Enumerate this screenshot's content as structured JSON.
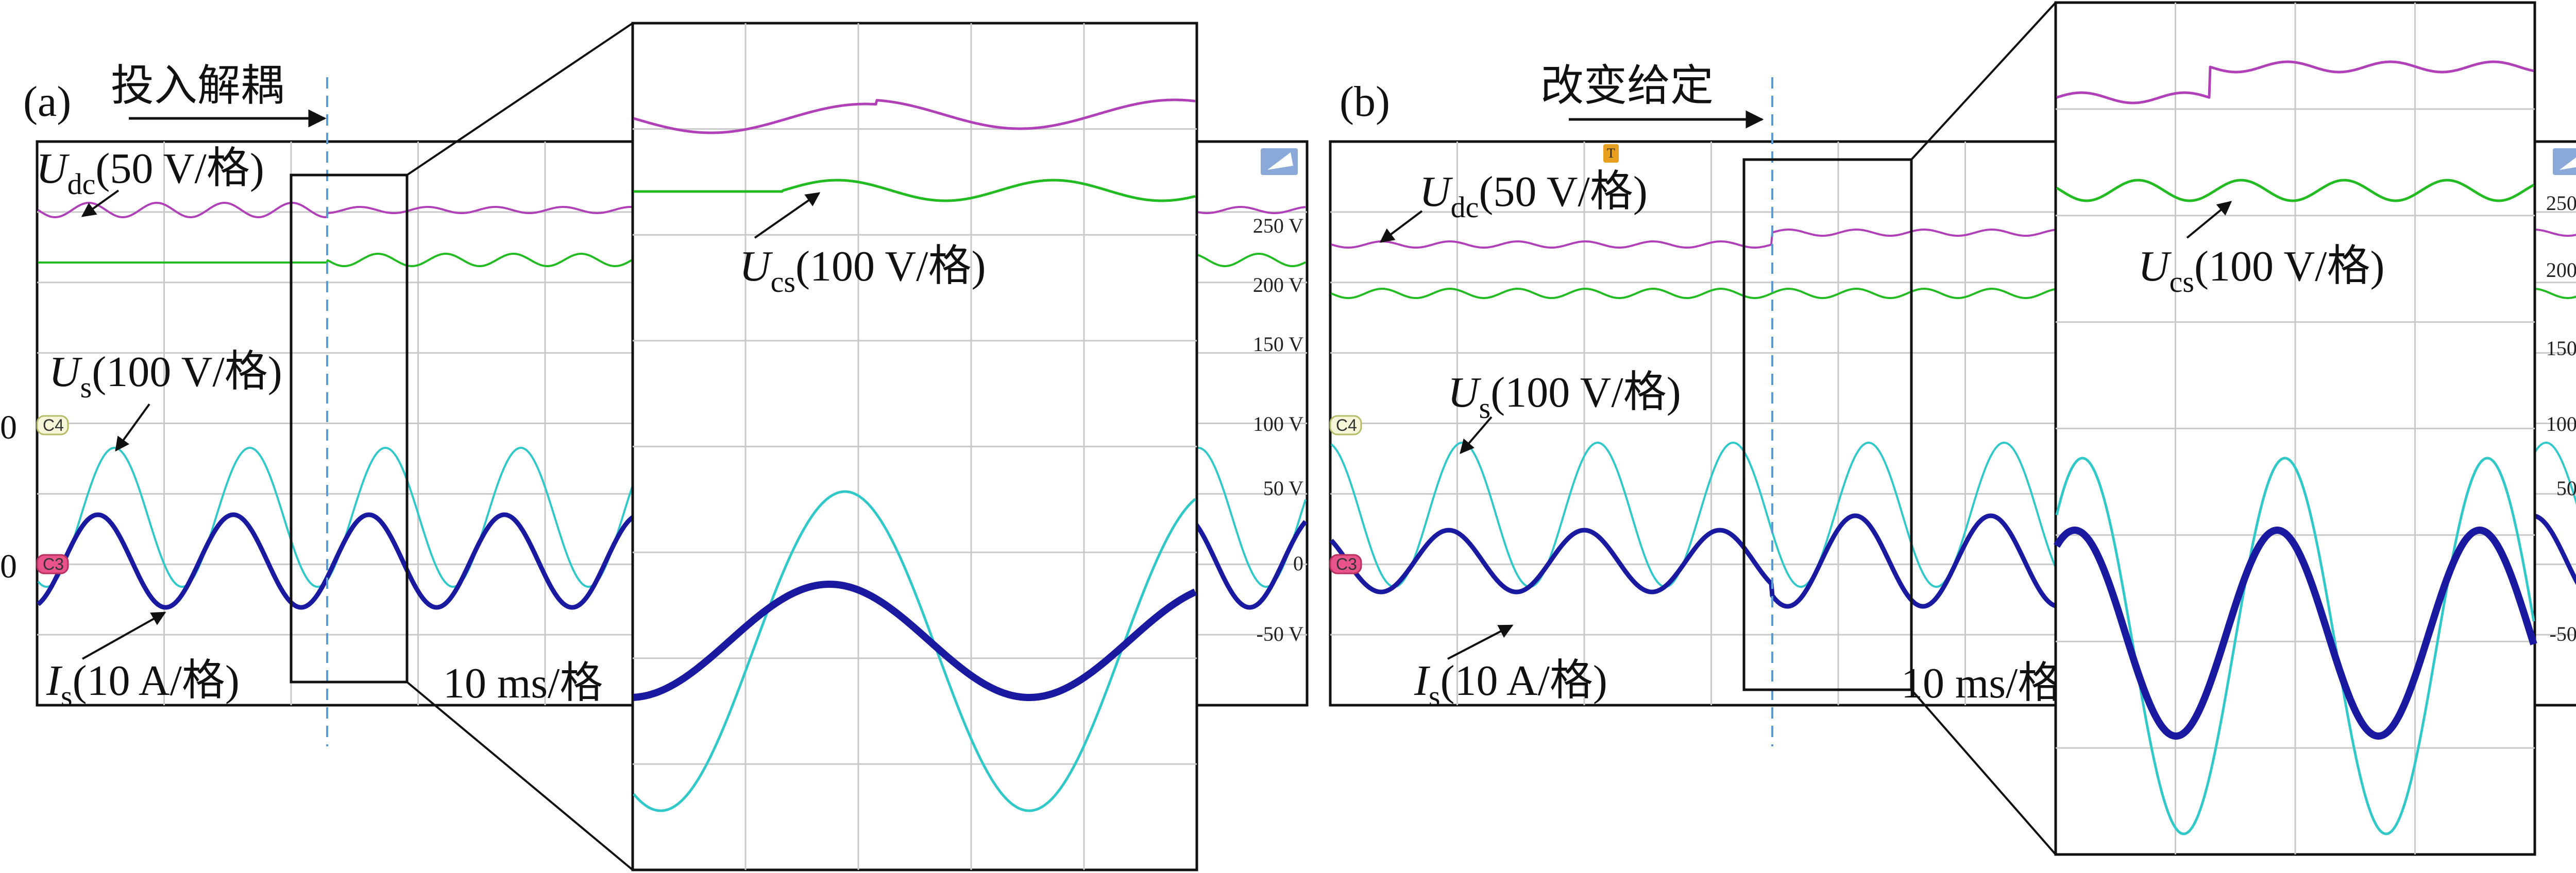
{
  "panels": [
    {
      "id": "a",
      "tag": "(a)",
      "event_label": "投入解耦",
      "time_scale": "10 ms/格",
      "zero_left_top": "0",
      "zero_left_bottom": "0",
      "channel_badges": [
        "C4",
        "C3"
      ],
      "right_axis_ticks": [
        "250 V",
        "200 V",
        "150 V",
        "100 V",
        "50 V",
        "0",
        "-50 V"
      ],
      "traces": [
        {
          "name": "U",
          "sub": "dc",
          "unit": "(50 V/格)",
          "color": "#b040b8"
        },
        {
          "name": "U",
          "sub": "cs",
          "unit": "(100 V/格)",
          "color": "#22bb22"
        },
        {
          "name": "U",
          "sub": "s",
          "unit": "(100 V/格)",
          "color": "#30c8c8"
        },
        {
          "name": "I",
          "sub": "s",
          "unit": "(10 A/格)",
          "color": "#1a1aa0"
        }
      ]
    },
    {
      "id": "b",
      "tag": "(b)",
      "event_label": "改变给定",
      "time_scale": "10 ms/格",
      "channel_badges": [
        "C4",
        "C3"
      ],
      "right_axis_ticks": [
        "250 V",
        "200 V",
        "150 V",
        "100 V",
        "50 V",
        "0",
        "-50 V"
      ],
      "traces": [
        {
          "name": "U",
          "sub": "dc",
          "unit": "(50 V/格)",
          "color": "#b040b8"
        },
        {
          "name": "U",
          "sub": "cs",
          "unit": "(100 V/格)",
          "color": "#22bb22"
        },
        {
          "name": "U",
          "sub": "s",
          "unit": "(100 V/格)",
          "color": "#30c8c8"
        },
        {
          "name": "I",
          "sub": "s",
          "unit": "(10 A/格)",
          "color": "#1a1aa0"
        }
      ]
    }
  ],
  "chart_data": [
    {
      "type": "line",
      "title": "(a) 投入解耦",
      "x_unit": "10 ms/格",
      "y_ticks": [
        "250 V",
        "200 V",
        "150 V",
        "100 V",
        "50 V",
        "0",
        "-50 V"
      ],
      "series": [
        {
          "name": "Udc (50 V/格)",
          "description_values": {
            "ripple_before_div": 0.35,
            "ripple_after_div": 0.12
          }
        },
        {
          "name": "Ucs (100 V/格)",
          "description_values": {
            "ripple_before_div": 0.0,
            "ripple_after_div": 0.2
          }
        },
        {
          "name": "Us (100 V/格)",
          "amplitude_div": 2.6,
          "period_div": 1.0
        },
        {
          "name": "Is (10 A/格)",
          "amplitude_div": 1.4,
          "period_div": 1.0
        }
      ]
    },
    {
      "type": "line",
      "title": "(b) 改变给定",
      "x_unit": "10 ms/格",
      "y_ticks": [
        "250 V",
        "200 V",
        "150 V",
        "100 V",
        "50 V",
        "0",
        "-50 V"
      ],
      "series": [
        {
          "name": "Udc (50 V/格)",
          "description_values": {
            "step_after_div": 0.35,
            "ripple_div": 0.1
          }
        },
        {
          "name": "Ucs (100 V/格)",
          "description_values": {
            "ripple_div": 0.18
          }
        },
        {
          "name": "Us (100 V/格)",
          "amplitude_div": 2.6,
          "period_div": 1.0
        },
        {
          "name": "Is (10 A/格)",
          "amplitude_before_div": 1.0,
          "amplitude_after_div": 1.4,
          "period_div": 1.0
        }
      ]
    }
  ]
}
